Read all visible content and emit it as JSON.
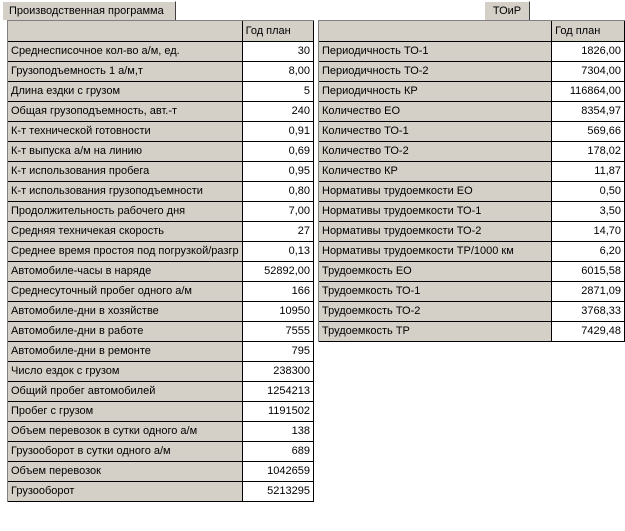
{
  "tabs": {
    "left": "Производственная программа",
    "right": "ТОиР"
  },
  "left_table": {
    "column_header": "Год план",
    "rows": [
      {
        "label": "Среднесписочное кол-во а/м, ед.",
        "value": "30"
      },
      {
        "label": "Грузоподъемность 1 а/м,т",
        "value": "8,00"
      },
      {
        "label": "Длина ездки с грузом",
        "value": "5"
      },
      {
        "label": "Общая грузоподъемность, авт.-т",
        "value": "240"
      },
      {
        "label": "К-т технической готовности",
        "value": "0,91"
      },
      {
        "label": "К-т выпуска а/м на линию",
        "value": "0,69"
      },
      {
        "label": "К-т использования пробега",
        "value": "0,95"
      },
      {
        "label": "К-т использования грузоподъемности",
        "value": "0,80"
      },
      {
        "label": "Продолжительность рабочего дня",
        "value": "7,00"
      },
      {
        "label": "Средняя техничекая скорость",
        "value": "27"
      },
      {
        "label": "Среднее время простоя под погрузкой/разгр",
        "value": "0,13"
      },
      {
        "label": "Автомобиле-часы в наряде",
        "value": "52892,00"
      },
      {
        "label": "Среднесуточный пробег одного а/м",
        "value": "166"
      },
      {
        "label": "Автомобиле-дни в хозяйстве",
        "value": "10950"
      },
      {
        "label": "Автомобиле-дни в работе",
        "value": "7555"
      },
      {
        "label": "Автомобиле-дни в ремонте",
        "value": "795"
      },
      {
        "label": "Число ездок с грузом",
        "value": "238300"
      },
      {
        "label": "Общий пробег автомобилей",
        "value": "1254213"
      },
      {
        "label": "Пробег с грузом",
        "value": "1191502"
      },
      {
        "label": "Объем перевозок в сутки одного а/м",
        "value": "138"
      },
      {
        "label": "Грузооборот в сутки одного а/м",
        "value": "689"
      },
      {
        "label": "Объем перевозок",
        "value": "1042659"
      },
      {
        "label": "Грузооборот",
        "value": "5213295"
      }
    ]
  },
  "right_table": {
    "column_header": "Год план",
    "rows": [
      {
        "label": "Периодичность ТО-1",
        "value": "1826,00"
      },
      {
        "label": "Периодичность ТО-2",
        "value": "7304,00"
      },
      {
        "label": "Периодичность КР",
        "value": "116864,00"
      },
      {
        "label": "Количество ЕО",
        "value": "8354,97"
      },
      {
        "label": "Количество ТО-1",
        "value": "569,66"
      },
      {
        "label": "Количество ТО-2",
        "value": "178,02"
      },
      {
        "label": "Количество КР",
        "value": "11,87"
      },
      {
        "label": "Нормативы трудоемкости ЕО",
        "value": "0,50"
      },
      {
        "label": "Нормативы трудоемкости ТО-1",
        "value": "3,50"
      },
      {
        "label": "Нормативы трудоемкости ТО-2",
        "value": "14,70"
      },
      {
        "label": "Нормативы трудоемкости ТР/1000 км",
        "value": "6,20"
      },
      {
        "label": "Трудоемкость ЕО",
        "value": "6015,58"
      },
      {
        "label": "Трудоемкость ТО-1",
        "value": "2871,09"
      },
      {
        "label": "Трудоемкость ТО-2",
        "value": "3768,33"
      },
      {
        "label": "Трудоемкость ТР",
        "value": "7429,48"
      }
    ]
  }
}
